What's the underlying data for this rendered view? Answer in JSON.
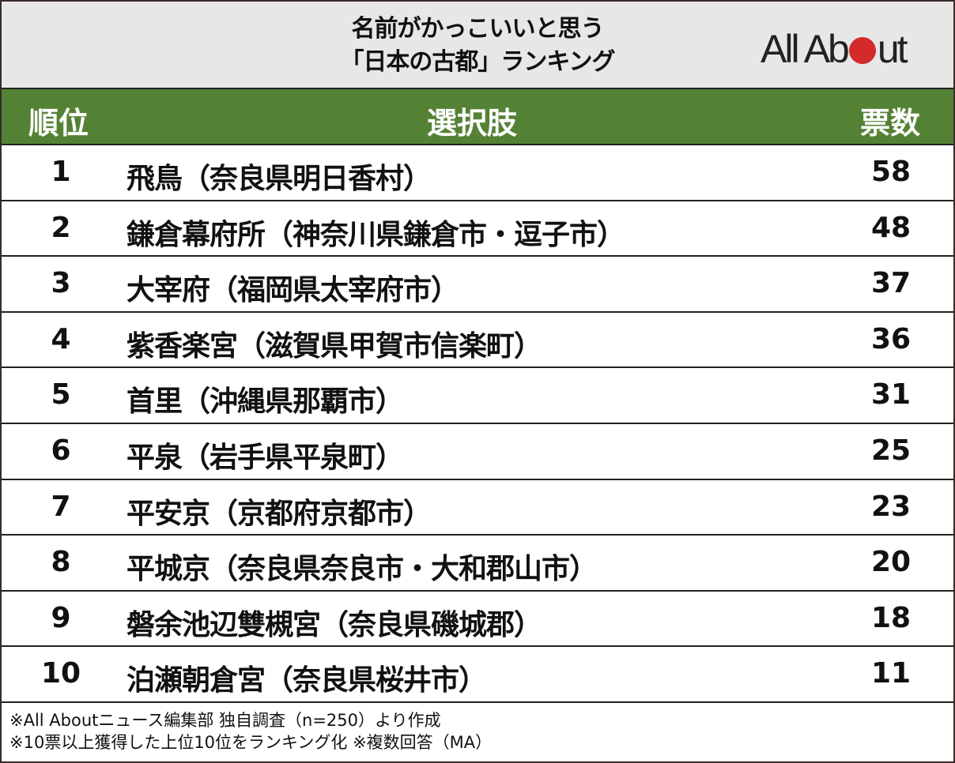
{
  "header": {
    "title_line1": "名前がかっこいいと思う",
    "title_line2": "「日本の古都」ランキング",
    "logo": "All About",
    "logo_color": "#d42a2a"
  },
  "columns": {
    "rank": "順位",
    "choice": "選択肢",
    "votes": "票数"
  },
  "rows": [
    {
      "rank": "1",
      "name": "飛鳥（奈良県明日香村）",
      "votes": "58"
    },
    {
      "rank": "2",
      "name": "鎌倉幕府所（神奈川県鎌倉市・逗子市）",
      "votes": "48"
    },
    {
      "rank": "3",
      "name": "大宰府（福岡県太宰府市）",
      "votes": "37"
    },
    {
      "rank": "4",
      "name": "紫香楽宮（滋賀県甲賀市信楽町）",
      "votes": "36"
    },
    {
      "rank": "5",
      "name": "首里（沖縄県那覇市）",
      "votes": "31"
    },
    {
      "rank": "6",
      "name": "平泉（岩手県平泉町）",
      "votes": "25"
    },
    {
      "rank": "7",
      "name": "平安京（京都府京都市）",
      "votes": "23"
    },
    {
      "rank": "8",
      "name": "平城京（奈良県奈良市・大和郡山市）",
      "votes": "20"
    },
    {
      "rank": "9",
      "name": "磐余池辺雙槻宮（奈良県磯城郡）",
      "votes": "18"
    },
    {
      "rank": "10",
      "name": "泊瀬朝倉宮（奈良県桜井市）",
      "votes": "11"
    }
  ],
  "footer": {
    "note1": "※All Aboutニュース編集部 独自調査（n=250）より作成",
    "note2": "※10票以上獲得した上位10位をランキング化 ※複数回答（MA）"
  },
  "colors": {
    "header_bg": "#548235",
    "title_bg": "#e7e7e7"
  }
}
